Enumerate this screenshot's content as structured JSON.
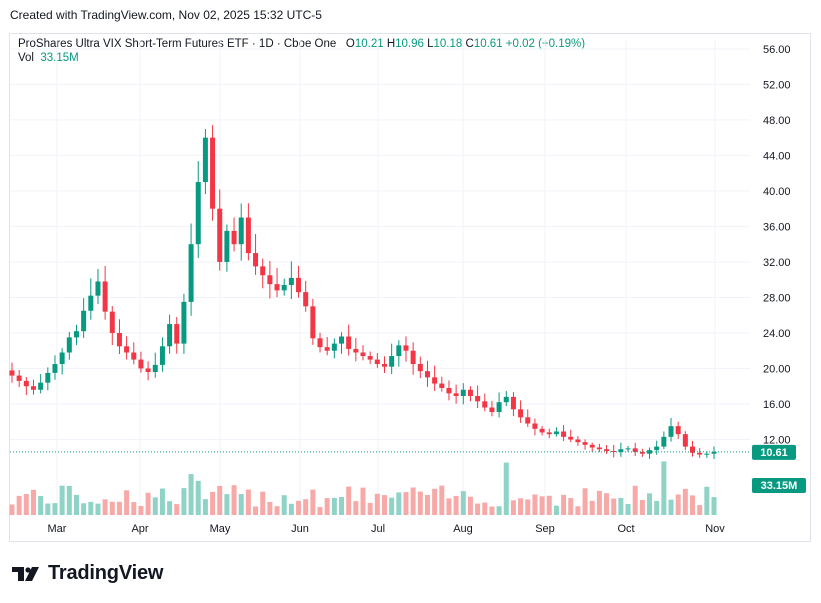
{
  "header": {
    "created": "Created with TradingView.com, Nov 02, 2025 15:32 UTC-5"
  },
  "legend": {
    "symbol": "ProShares Ultra VIX Short-Term Futures ETF · 1D · Cboe One",
    "o_label": "O",
    "o_value": "10.21",
    "h_label": "H",
    "h_value": "10.96",
    "l_label": "L",
    "l_value": "10.18",
    "c_label": "C",
    "c_value": "10.61",
    "change": "+0.02 (+0.19%)",
    "vol_label": "Vol",
    "vol_value": "33.15M"
  },
  "colors": {
    "up": "#089981",
    "down": "#f23645",
    "vol_up": "#8fd2c6",
    "vol_down": "#f7a9a7",
    "badge": "#089981"
  },
  "footer": {
    "brand": "TradingView",
    "logo_icon": "tradingview-logo-icon"
  },
  "chart_data": {
    "type": "candlestick",
    "x_range": [
      "2025-02-10",
      "2025-10-31"
    ],
    "ylim": [
      8,
      57
    ],
    "y_ticks": [
      "56.00",
      "52.00",
      "48.00",
      "44.00",
      "40.00",
      "36.00",
      "32.00",
      "28.00",
      "24.00",
      "20.00",
      "16.00",
      "12.00"
    ],
    "x_ticks": [
      "Mar",
      "Apr",
      "May",
      "Jun",
      "Jul",
      "Aug",
      "Sep",
      "Oct",
      "Nov"
    ],
    "last_price": "10.61",
    "last_volume": "33.15M",
    "close_series": [
      19.2,
      18.6,
      18.0,
      17.6,
      18.4,
      19.5,
      20.5,
      21.8,
      23.5,
      24.2,
      26.5,
      28.2,
      29.8,
      26.4,
      24.0,
      22.5,
      21.8,
      21.0,
      20.0,
      19.6,
      20.4,
      22.5,
      25.0,
      22.8,
      27.5,
      34.0,
      41.0,
      46.0,
      38.0,
      32.0,
      35.5,
      34.0,
      37.0,
      33.0,
      31.5,
      30.5,
      29.5,
      28.8,
      29.4,
      30.2,
      28.6,
      27.0,
      23.4,
      22.4,
      22.0,
      22.8,
      23.6,
      22.2,
      21.8,
      21.4,
      21.0,
      20.5,
      20.2,
      21.4,
      22.6,
      22.0,
      20.5,
      19.7,
      19.0,
      18.3,
      17.8,
      17.2,
      16.9,
      17.6,
      16.9,
      16.3,
      15.6,
      15.1,
      16.2,
      16.8,
      15.4,
      14.5,
      13.8,
      13.2,
      12.8,
      12.6,
      12.9,
      12.3,
      12.0,
      11.7,
      11.4,
      11.1,
      10.9,
      10.7,
      10.6,
      10.9,
      11.0,
      10.6,
      10.4,
      10.8,
      11.2,
      12.3,
      13.5,
      12.6,
      11.2,
      10.5,
      10.3,
      10.4,
      10.6
    ],
    "volume_max_label": "33.15M"
  }
}
